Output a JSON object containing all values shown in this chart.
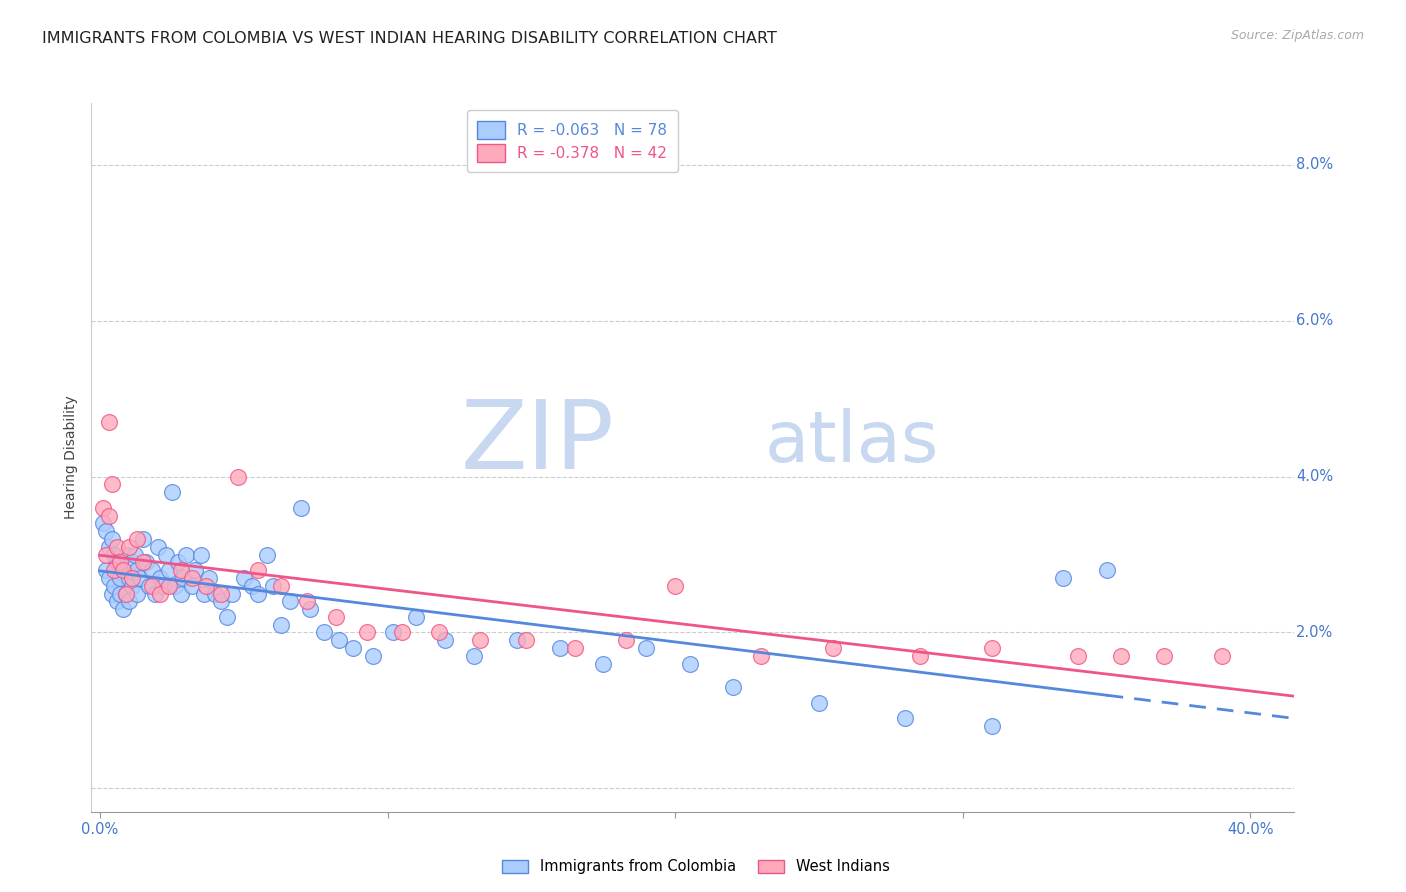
{
  "title": "IMMIGRANTS FROM COLOMBIA VS WEST INDIAN HEARING DISABILITY CORRELATION CHART",
  "source": "Source: ZipAtlas.com",
  "ylabel": "Hearing Disability",
  "background_color": "#ffffff",
  "plot_bg_color": "#ffffff",
  "grid_color": "#cccccc",
  "xlim": [
    -0.003,
    0.415
  ],
  "ylim": [
    -0.003,
    0.088
  ],
  "colombia_color": "#5588dd",
  "colombia_color_fill": "#aaccff",
  "west_indian_color": "#ee5588",
  "west_indian_color_fill": "#ffaabb",
  "colombia_R": "-0.063",
  "colombia_N": "78",
  "west_indian_R": "-0.378",
  "west_indian_N": "42",
  "colombia_scatter_x": [
    0.001,
    0.002,
    0.002,
    0.003,
    0.003,
    0.004,
    0.004,
    0.005,
    0.005,
    0.006,
    0.006,
    0.007,
    0.007,
    0.008,
    0.008,
    0.009,
    0.009,
    0.01,
    0.01,
    0.011,
    0.011,
    0.012,
    0.013,
    0.013,
    0.014,
    0.015,
    0.016,
    0.017,
    0.018,
    0.019,
    0.02,
    0.021,
    0.022,
    0.023,
    0.024,
    0.025,
    0.026,
    0.027,
    0.028,
    0.029,
    0.03,
    0.032,
    0.033,
    0.035,
    0.036,
    0.038,
    0.04,
    0.042,
    0.044,
    0.046,
    0.05,
    0.053,
    0.055,
    0.058,
    0.06,
    0.063,
    0.066,
    0.07,
    0.073,
    0.078,
    0.083,
    0.088,
    0.095,
    0.102,
    0.11,
    0.12,
    0.13,
    0.145,
    0.16,
    0.175,
    0.19,
    0.205,
    0.22,
    0.25,
    0.28,
    0.31,
    0.335,
    0.35
  ],
  "colombia_scatter_y": [
    0.034,
    0.033,
    0.028,
    0.031,
    0.027,
    0.032,
    0.025,
    0.03,
    0.026,
    0.029,
    0.024,
    0.027,
    0.025,
    0.028,
    0.023,
    0.03,
    0.025,
    0.027,
    0.024,
    0.029,
    0.026,
    0.03,
    0.028,
    0.025,
    0.027,
    0.032,
    0.029,
    0.026,
    0.028,
    0.025,
    0.031,
    0.027,
    0.026,
    0.03,
    0.028,
    0.038,
    0.026,
    0.029,
    0.025,
    0.027,
    0.03,
    0.026,
    0.028,
    0.03,
    0.025,
    0.027,
    0.025,
    0.024,
    0.022,
    0.025,
    0.027,
    0.026,
    0.025,
    0.03,
    0.026,
    0.021,
    0.024,
    0.036,
    0.023,
    0.02,
    0.019,
    0.018,
    0.017,
    0.02,
    0.022,
    0.019,
    0.017,
    0.019,
    0.018,
    0.016,
    0.018,
    0.016,
    0.013,
    0.011,
    0.009,
    0.008,
    0.027,
    0.028
  ],
  "west_indian_scatter_x": [
    0.001,
    0.002,
    0.003,
    0.003,
    0.004,
    0.005,
    0.006,
    0.007,
    0.008,
    0.009,
    0.01,
    0.011,
    0.013,
    0.015,
    0.018,
    0.021,
    0.024,
    0.028,
    0.032,
    0.037,
    0.042,
    0.048,
    0.055,
    0.063,
    0.072,
    0.082,
    0.093,
    0.105,
    0.118,
    0.132,
    0.148,
    0.165,
    0.183,
    0.2,
    0.23,
    0.255,
    0.285,
    0.31,
    0.34,
    0.355,
    0.37,
    0.39
  ],
  "west_indian_scatter_y": [
    0.036,
    0.03,
    0.047,
    0.035,
    0.039,
    0.028,
    0.031,
    0.029,
    0.028,
    0.025,
    0.031,
    0.027,
    0.032,
    0.029,
    0.026,
    0.025,
    0.026,
    0.028,
    0.027,
    0.026,
    0.025,
    0.04,
    0.028,
    0.026,
    0.024,
    0.022,
    0.02,
    0.02,
    0.02,
    0.019,
    0.019,
    0.018,
    0.019,
    0.026,
    0.017,
    0.018,
    0.017,
    0.018,
    0.017,
    0.017,
    0.017,
    0.017
  ],
  "watermark_zip": "ZIP",
  "watermark_atlas": "atlas",
  "watermark_color_zip": "#c8d8f0",
  "watermark_color_atlas": "#c8d8f0",
  "title_fontsize": 11.5,
  "axis_label_fontsize": 10,
  "tick_fontsize": 10.5,
  "legend_fontsize": 11,
  "scatter_size": 130,
  "line_width": 2.0,
  "tick_color": "#4477cc"
}
